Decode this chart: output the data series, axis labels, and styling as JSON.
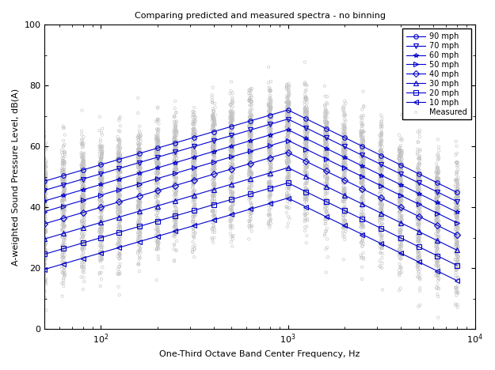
{
  "title": "Comparing predicted and measured spectra - no binning",
  "xlabel": "One-Third Octave Band Center Frequency, Hz",
  "ylabel": "A-weighted Sound Pressure Level, dB(A)",
  "xlim_log": [
    1.699,
    4.0
  ],
  "ylim": [
    0,
    100
  ],
  "line_color": "#0000CC",
  "measured_color": "#C0C0C0",
  "speeds": [
    90,
    70,
    60,
    50,
    40,
    30,
    20,
    10
  ],
  "speed_labels": [
    "90 mph",
    "70 mph",
    "60 mph",
    "50 mph",
    "40 mph",
    "30 mph",
    "20 mph",
    "10 mph"
  ],
  "markers": [
    "o",
    "v",
    "*",
    ">",
    "D",
    "^",
    "s",
    "<"
  ],
  "freqs": [
    50,
    63,
    80,
    100,
    125,
    160,
    200,
    250,
    315,
    400,
    500,
    630,
    800,
    1000,
    1250,
    1600,
    2000,
    2500,
    3150,
    4000,
    5000,
    6300,
    8000
  ],
  "peak_levels": [
    72,
    69,
    65.5,
    62,
    58,
    53,
    48,
    43
  ],
  "rise_slope": 18,
  "fall_slope": 30,
  "peak_freq": 1000,
  "background_color": "#FFFFFF",
  "scatter_speeds": [
    10,
    20,
    30,
    40,
    50,
    60,
    70,
    80,
    90,
    100
  ],
  "scatter_n_per_freq": 25,
  "scatter_spread_dB": 12,
  "scatter_seed": 1234
}
